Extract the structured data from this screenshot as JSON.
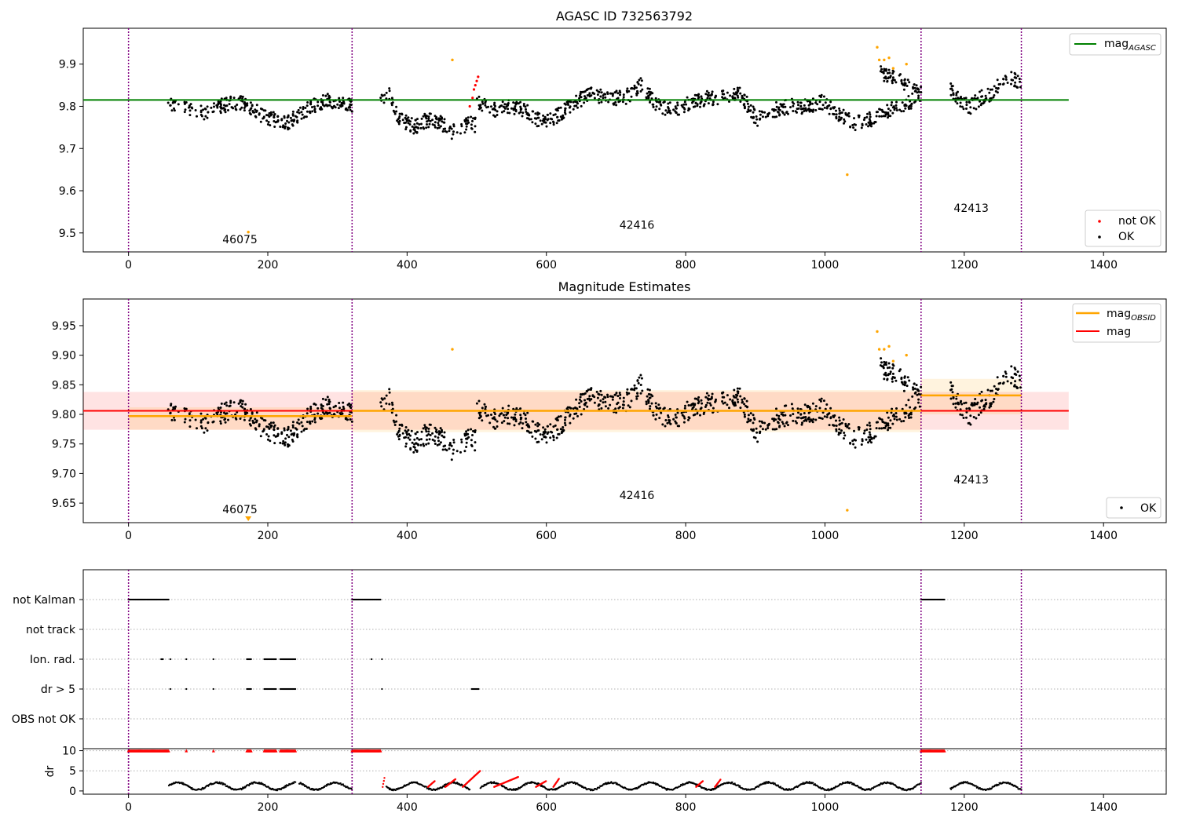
{
  "chart_data": [
    {
      "type": "scatter",
      "title": "AGASC ID 732563792",
      "xlim": [
        -65,
        1490
      ],
      "ylim": [
        9.455,
        9.985
      ],
      "xticks": [
        0,
        200,
        400,
        600,
        800,
        1000,
        1200,
        1400
      ],
      "yticks": [
        9.5,
        9.6,
        9.7,
        9.8,
        9.9
      ],
      "ytick_labels": [
        "9.5",
        "9.6",
        "9.7",
        "9.8",
        "9.9"
      ],
      "legend_upper": {
        "label_main": "mag",
        "label_sub": "AGASC",
        "color": "#008000",
        "position": "upper right"
      },
      "legend_lower": {
        "entries": [
          {
            "label": "not OK",
            "color": "#ff0000"
          },
          {
            "label": "OK",
            "color": "#000000"
          }
        ],
        "position": "lower right"
      },
      "reference_line": {
        "name": "mag_AGASC",
        "y": 9.815,
        "x_range": [
          -65,
          1350
        ],
        "color": "#008000"
      },
      "obsid_boundaries": [
        0,
        321,
        1138,
        1282
      ],
      "obsid_labels": [
        {
          "text": "46075",
          "x": 160,
          "y": 9.475
        },
        {
          "text": "42416",
          "x": 730,
          "y": 9.51
        },
        {
          "text": "42413",
          "x": 1210,
          "y": 9.55
        }
      ],
      "series_ok": {
        "name": "OK",
        "color": "#000000",
        "segments": [
          {
            "x_start": 57,
            "x_end": 321,
            "levels": [
              9.81,
              9.8,
              9.79,
              9.785,
              9.8,
              9.81,
              9.805,
              9.78,
              9.77,
              9.76,
              9.78,
              9.8,
              9.815,
              9.81,
              9.805
            ]
          },
          {
            "x_start": 362,
            "x_end": 500,
            "levels": [
              9.82,
              9.83,
              9.77,
              9.76,
              9.75,
              9.765,
              9.77,
              9.76,
              9.74,
              9.74,
              9.76,
              9.755
            ]
          },
          {
            "x_start": 500,
            "x_end": 1138,
            "levels": [
              9.81,
              9.79,
              9.8,
              9.79,
              9.76,
              9.78,
              9.81,
              9.83,
              9.82,
              9.82,
              9.85,
              9.8,
              9.79,
              9.81,
              9.82,
              9.82,
              9.83,
              9.77,
              9.79,
              9.8,
              9.8,
              9.81,
              9.78,
              9.76,
              9.77,
              9.79,
              9.8,
              9.83
            ]
          },
          {
            "x_start": 1080,
            "x_end": 1138,
            "levels": [
              9.88,
              9.87,
              9.86,
              9.85,
              9.82
            ]
          },
          {
            "x_start": 1180,
            "x_end": 1282,
            "levels": [
              9.84,
              9.81,
              9.8,
              9.82,
              9.83,
              9.86,
              9.87,
              9.85
            ]
          }
        ]
      },
      "series_not_ok": {
        "name": "not OK",
        "color": "#ff0000",
        "points": [
          [
            490,
            9.8
          ],
          [
            494,
            9.82
          ],
          [
            496,
            9.84
          ],
          [
            498,
            9.85
          ],
          [
            500,
            9.86
          ],
          [
            502,
            9.87
          ]
        ]
      },
      "outliers_orange": {
        "color": "#ffa500",
        "points": [
          [
            172,
            9.502
          ],
          [
            465,
            9.91
          ],
          [
            1032,
            9.638
          ],
          [
            1075,
            9.94
          ],
          [
            1078,
            9.91
          ],
          [
            1085,
            9.91
          ],
          [
            1092,
            9.915
          ],
          [
            1098,
            9.89
          ],
          [
            1117,
            9.9
          ]
        ]
      }
    },
    {
      "type": "scatter",
      "title": "Magnitude Estimates",
      "xlim": [
        -65,
        1490
      ],
      "ylim": [
        9.617,
        9.995
      ],
      "xticks": [
        0,
        200,
        400,
        600,
        800,
        1000,
        1200,
        1400
      ],
      "yticks": [
        9.65,
        9.7,
        9.75,
        9.8,
        9.85,
        9.9,
        9.95
      ],
      "ytick_labels": [
        "9.65",
        "9.70",
        "9.75",
        "9.80",
        "9.85",
        "9.90",
        "9.95"
      ],
      "legend_upper": {
        "entries": [
          {
            "label_main": "mag",
            "label_sub": "OBSID",
            "color": "#ffa500"
          },
          {
            "label_main": "mag",
            "label_sub": "",
            "color": "#ff0000"
          }
        ],
        "position": "upper right"
      },
      "legend_lower": {
        "entries": [
          {
            "label": "OK",
            "color": "#000000"
          }
        ],
        "position": "lower right"
      },
      "mag_line": {
        "y": 9.806,
        "band": [
          9.774,
          9.838
        ],
        "x_range": [
          -65,
          1350
        ],
        "color": "#ff0000"
      },
      "obsid_mag": [
        {
          "x_range": [
            0,
            321
          ],
          "y": 9.797,
          "band": [
            9.774,
            9.812
          ]
        },
        {
          "x_range": [
            321,
            1138
          ],
          "y": 9.806,
          "band": [
            9.77,
            9.841
          ]
        },
        {
          "x_range": [
            1138,
            1282
          ],
          "y": 9.832,
          "band": [
            9.8,
            9.86
          ]
        }
      ],
      "obsid_boundaries": [
        0,
        321,
        1138,
        1282
      ],
      "obsid_labels": [
        {
          "text": "46075",
          "x": 160,
          "y": 9.633
        },
        {
          "text": "42416",
          "x": 730,
          "y": 9.657
        },
        {
          "text": "42413",
          "x": 1210,
          "y": 9.683
        }
      ],
      "outliers_orange": {
        "color": "#ffa500",
        "points": [
          [
            465,
            9.91
          ],
          [
            1032,
            9.638
          ],
          [
            1075,
            9.94
          ],
          [
            1078,
            9.91
          ],
          [
            1085,
            9.91
          ],
          [
            1092,
            9.915
          ],
          [
            1098,
            9.89
          ],
          [
            1117,
            9.9
          ]
        ]
      },
      "below_marker": {
        "x": 172,
        "color": "#ffa500"
      }
    },
    {
      "type": "scatter",
      "title": "",
      "xlim": [
        -65,
        1490
      ],
      "xticks": [
        0,
        200,
        400,
        600,
        800,
        1000,
        1200,
        1400
      ],
      "flag_rows": [
        "not Kalman",
        "not track",
        "Ion. rad.",
        "dr > 5",
        "OBS not OK"
      ],
      "flags": {
        "not Kalman": [
          [
            0,
            58
          ],
          [
            321,
            362
          ],
          [
            1138,
            1172
          ]
        ],
        "not track": [],
        "Ion. rad.": [
          [
            47,
            50
          ],
          [
            60,
            60
          ],
          [
            83,
            83
          ],
          [
            122,
            122
          ],
          [
            170,
            176
          ],
          [
            195,
            212
          ],
          [
            218,
            240
          ],
          [
            349,
            349
          ],
          [
            364,
            364
          ]
        ],
        "dr > 5": [
          [
            60,
            60
          ],
          [
            83,
            83
          ],
          [
            122,
            122
          ],
          [
            170,
            176
          ],
          [
            195,
            212
          ],
          [
            218,
            240
          ],
          [
            364,
            364
          ],
          [
            493,
            503
          ]
        ],
        "OBS not OK": []
      },
      "dr_panel": {
        "ylabel": "dr",
        "yticks": [
          0,
          5,
          10
        ],
        "ylim": [
          -0.8,
          10.5
        ],
        "red_clip_ranges": [
          [
            0,
            58
          ],
          [
            83,
            83
          ],
          [
            122,
            122
          ],
          [
            170,
            176
          ],
          [
            195,
            212
          ],
          [
            218,
            240
          ],
          [
            321,
            362
          ],
          [
            1138,
            1172
          ]
        ],
        "red_bumps": [
          [
            365,
            368,
            3.8
          ],
          [
            430,
            440,
            2.5
          ],
          [
            455,
            470,
            3.0
          ],
          [
            480,
            505,
            5.0
          ],
          [
            525,
            560,
            3.5
          ],
          [
            585,
            600,
            2.5
          ],
          [
            610,
            618,
            3.0
          ],
          [
            815,
            825,
            2.5
          ],
          [
            842,
            850,
            2.8
          ]
        ],
        "black_gaps": [
          [
            0,
            57
          ],
          [
            240,
            245
          ],
          [
            321,
            370
          ],
          [
            490,
            505
          ],
          [
            1138,
            1180
          ]
        ]
      }
    }
  ]
}
